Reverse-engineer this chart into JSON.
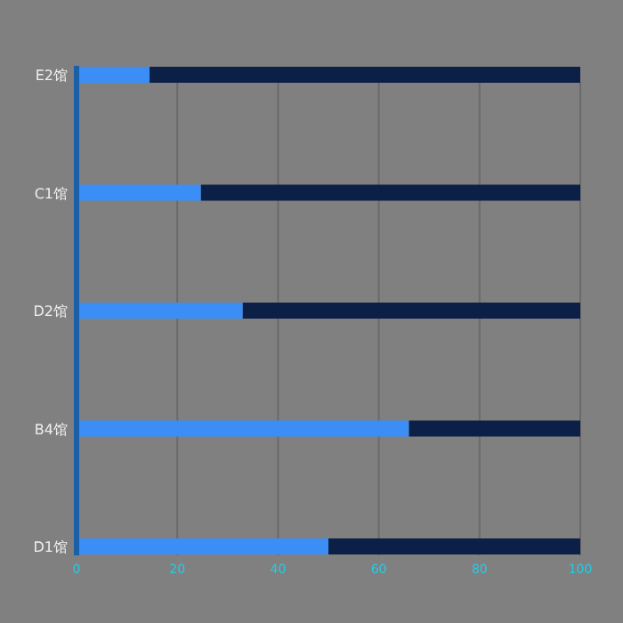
{
  "chart_data": {
    "type": "bar",
    "orientation": "horizontal",
    "categories": [
      "E2馆",
      "C1馆",
      "D2馆",
      "B4馆",
      "D1馆"
    ],
    "stacked": true,
    "series": [
      {
        "color": "#3a8ef5",
        "values": [
          14.5,
          24.7,
          33,
          66,
          50
        ]
      },
      {
        "color": "#0c1f47",
        "values": [
          85.5,
          75.3,
          67,
          34,
          50
        ]
      }
    ],
    "xlim": [
      0,
      100
    ],
    "xticks": [
      0,
      20,
      40,
      60,
      80,
      100
    ],
    "grid": "x"
  }
}
